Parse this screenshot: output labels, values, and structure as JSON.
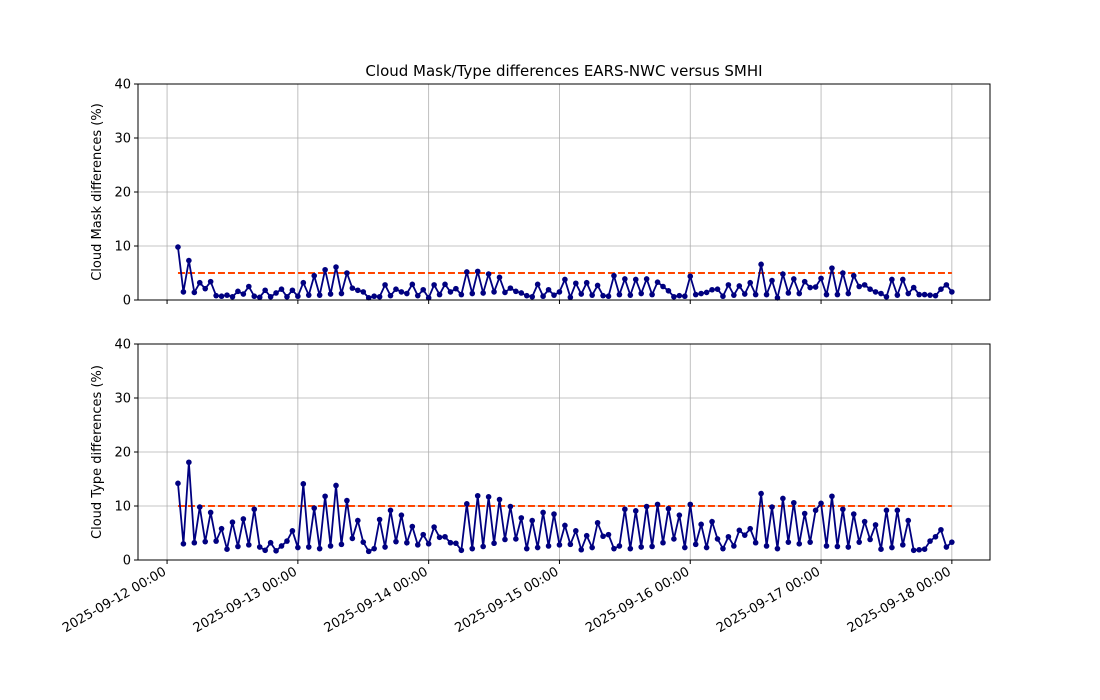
{
  "chart_data": [
    {
      "type": "line",
      "title": "Cloud Mask/Type differences EARS-NWC versus SMHI",
      "ylabel": "Cloud Mask differences (%)",
      "xlim": [
        "2025-09-11 18:40",
        "2025-09-18 07:00"
      ],
      "ylim": [
        0,
        40
      ],
      "yticks": [
        0,
        10,
        20,
        30,
        40
      ],
      "grid": true,
      "xticks": [
        "2025-09-12 00:00",
        "2025-09-13 00:00",
        "2025-09-14 00:00",
        "2025-09-15 00:00",
        "2025-09-16 00:00",
        "2025-09-17 00:00",
        "2025-09-18 00:00"
      ],
      "threshold": {
        "value": 5,
        "color": "#ff4500"
      },
      "x": [
        "2025-09-12 02:00",
        "2025-09-12 03:00",
        "2025-09-12 04:00",
        "2025-09-12 05:00",
        "2025-09-12 06:00",
        "2025-09-12 07:00",
        "2025-09-12 08:00",
        "2025-09-12 09:00",
        "2025-09-12 10:00",
        "2025-09-12 11:00",
        "2025-09-12 12:00",
        "2025-09-12 13:00",
        "2025-09-12 14:00",
        "2025-09-12 15:00",
        "2025-09-12 16:00",
        "2025-09-12 17:00",
        "2025-09-12 18:00",
        "2025-09-12 19:00",
        "2025-09-12 20:00",
        "2025-09-12 21:00",
        "2025-09-12 22:00",
        "2025-09-12 23:00",
        "2025-09-13 00:00",
        "2025-09-13 01:00",
        "2025-09-13 02:00",
        "2025-09-13 03:00",
        "2025-09-13 04:00",
        "2025-09-13 05:00",
        "2025-09-13 06:00",
        "2025-09-13 07:00",
        "2025-09-13 08:00",
        "2025-09-13 09:00",
        "2025-09-13 10:00",
        "2025-09-13 11:00",
        "2025-09-13 12:00",
        "2025-09-13 13:00",
        "2025-09-13 14:00",
        "2025-09-13 15:00",
        "2025-09-13 16:00",
        "2025-09-13 17:00",
        "2025-09-13 18:00",
        "2025-09-13 19:00",
        "2025-09-13 20:00",
        "2025-09-13 21:00",
        "2025-09-13 22:00",
        "2025-09-13 23:00",
        "2025-09-14 00:00",
        "2025-09-14 01:00",
        "2025-09-14 02:00",
        "2025-09-14 03:00",
        "2025-09-14 04:00",
        "2025-09-14 05:00",
        "2025-09-14 06:00",
        "2025-09-14 07:00",
        "2025-09-14 08:00",
        "2025-09-14 09:00",
        "2025-09-14 10:00",
        "2025-09-14 11:00",
        "2025-09-14 12:00",
        "2025-09-14 13:00",
        "2025-09-14 14:00",
        "2025-09-14 15:00",
        "2025-09-14 16:00",
        "2025-09-14 17:00",
        "2025-09-14 18:00",
        "2025-09-14 19:00",
        "2025-09-14 20:00",
        "2025-09-14 21:00",
        "2025-09-14 22:00",
        "2025-09-14 23:00",
        "2025-09-15 00:00",
        "2025-09-15 01:00",
        "2025-09-15 02:00",
        "2025-09-15 03:00",
        "2025-09-15 04:00",
        "2025-09-15 05:00",
        "2025-09-15 06:00",
        "2025-09-15 07:00",
        "2025-09-15 08:00",
        "2025-09-15 09:00",
        "2025-09-15 10:00",
        "2025-09-15 11:00",
        "2025-09-15 12:00",
        "2025-09-15 13:00",
        "2025-09-15 14:00",
        "2025-09-15 15:00",
        "2025-09-15 16:00",
        "2025-09-15 17:00",
        "2025-09-15 18:00",
        "2025-09-15 19:00",
        "2025-09-15 20:00",
        "2025-09-15 21:00",
        "2025-09-15 22:00",
        "2025-09-15 23:00",
        "2025-09-16 00:00",
        "2025-09-16 01:00",
        "2025-09-16 02:00",
        "2025-09-16 03:00",
        "2025-09-16 04:00",
        "2025-09-16 05:00",
        "2025-09-16 06:00",
        "2025-09-16 07:00",
        "2025-09-16 08:00",
        "2025-09-16 09:00",
        "2025-09-16 10:00",
        "2025-09-16 11:00",
        "2025-09-16 12:00",
        "2025-09-16 13:00",
        "2025-09-16 14:00",
        "2025-09-16 15:00",
        "2025-09-16 16:00",
        "2025-09-16 17:00",
        "2025-09-16 18:00",
        "2025-09-16 19:00",
        "2025-09-16 20:00",
        "2025-09-16 21:00",
        "2025-09-16 22:00",
        "2025-09-16 23:00",
        "2025-09-17 00:00",
        "2025-09-17 01:00",
        "2025-09-17 02:00",
        "2025-09-17 03:00",
        "2025-09-17 04:00",
        "2025-09-17 05:00",
        "2025-09-17 06:00",
        "2025-09-17 07:00",
        "2025-09-17 08:00",
        "2025-09-17 09:00",
        "2025-09-17 10:00",
        "2025-09-17 11:00",
        "2025-09-17 12:00",
        "2025-09-17 13:00",
        "2025-09-17 14:00",
        "2025-09-17 15:00",
        "2025-09-17 16:00",
        "2025-09-17 17:00",
        "2025-09-17 18:00",
        "2025-09-17 19:00",
        "2025-09-17 20:00",
        "2025-09-17 21:00",
        "2025-09-17 22:00",
        "2025-09-17 23:00",
        "2025-09-18 00:00"
      ],
      "series": [
        {
          "color": "#000080",
          "values": [
            9.8,
            1.5,
            7.3,
            1.4,
            3.2,
            2.1,
            3.4,
            0.8,
            0.7,
            0.9,
            0.6,
            1.6,
            1.1,
            2.5,
            0.7,
            0.5,
            1.8,
            0.6,
            1.3,
            2.0,
            0.6,
            1.8,
            0.7,
            3.2,
            0.9,
            4.5,
            0.9,
            5.6,
            1.1,
            6.1,
            1.2,
            5.0,
            2.2,
            1.8,
            1.5,
            0.4,
            0.7,
            0.6,
            2.8,
            0.8,
            2.0,
            1.5,
            1.2,
            2.9,
            0.8,
            1.9,
            0.4,
            2.8,
            1.0,
            2.9,
            1.5,
            2.1,
            1.0,
            5.2,
            1.2,
            5.3,
            1.3,
            4.8,
            1.5,
            4.2,
            1.4,
            2.2,
            1.6,
            1.3,
            0.8,
            0.6,
            2.9,
            0.7,
            1.9,
            0.9,
            1.5,
            3.8,
            0.5,
            3.1,
            1.1,
            3.2,
            0.9,
            2.7,
            0.8,
            0.7,
            4.5,
            1.0,
            3.9,
            0.9,
            3.8,
            1.2,
            3.9,
            1.0,
            3.3,
            2.5,
            1.7,
            0.6,
            0.8,
            0.7,
            4.4,
            1.0,
            1.2,
            1.4,
            1.9,
            2.0,
            0.7,
            2.8,
            0.9,
            2.6,
            1.1,
            3.2,
            1.0,
            6.6,
            1.0,
            3.6,
            0.4,
            4.8,
            1.3,
            3.9,
            1.2,
            3.4,
            2.3,
            2.4,
            4.0,
            1.0,
            5.9,
            1.0,
            5.0,
            1.2,
            4.5,
            2.5,
            2.8,
            2.0,
            1.5,
            1.2,
            0.6,
            3.8,
            0.9,
            3.8,
            1.2,
            2.3,
            1.0,
            1.0,
            0.9,
            0.8,
            2.0,
            2.8,
            1.5
          ]
        }
      ]
    },
    {
      "type": "line",
      "ylabel": "Cloud Type differences (%)",
      "xlim": [
        "2025-09-11 18:40",
        "2025-09-18 07:00"
      ],
      "ylim": [
        0,
        40
      ],
      "yticks": [
        0,
        10,
        20,
        30,
        40
      ],
      "grid": true,
      "xticks": [
        "2025-09-12 00:00",
        "2025-09-13 00:00",
        "2025-09-14 00:00",
        "2025-09-15 00:00",
        "2025-09-16 00:00",
        "2025-09-17 00:00",
        "2025-09-18 00:00"
      ],
      "threshold": {
        "value": 10,
        "color": "#ff4500"
      },
      "x": [
        "2025-09-12 02:00",
        "2025-09-12 03:00",
        "2025-09-12 04:00",
        "2025-09-12 05:00",
        "2025-09-12 06:00",
        "2025-09-12 07:00",
        "2025-09-12 08:00",
        "2025-09-12 09:00",
        "2025-09-12 10:00",
        "2025-09-12 11:00",
        "2025-09-12 12:00",
        "2025-09-12 13:00",
        "2025-09-12 14:00",
        "2025-09-12 15:00",
        "2025-09-12 16:00",
        "2025-09-12 17:00",
        "2025-09-12 18:00",
        "2025-09-12 19:00",
        "2025-09-12 20:00",
        "2025-09-12 21:00",
        "2025-09-12 22:00",
        "2025-09-12 23:00",
        "2025-09-13 00:00",
        "2025-09-13 01:00",
        "2025-09-13 02:00",
        "2025-09-13 03:00",
        "2025-09-13 04:00",
        "2025-09-13 05:00",
        "2025-09-13 06:00",
        "2025-09-13 07:00",
        "2025-09-13 08:00",
        "2025-09-13 09:00",
        "2025-09-13 10:00",
        "2025-09-13 11:00",
        "2025-09-13 12:00",
        "2025-09-13 13:00",
        "2025-09-13 14:00",
        "2025-09-13 15:00",
        "2025-09-13 16:00",
        "2025-09-13 17:00",
        "2025-09-13 18:00",
        "2025-09-13 19:00",
        "2025-09-13 20:00",
        "2025-09-13 21:00",
        "2025-09-13 22:00",
        "2025-09-13 23:00",
        "2025-09-14 00:00",
        "2025-09-14 01:00",
        "2025-09-14 02:00",
        "2025-09-14 03:00",
        "2025-09-14 04:00",
        "2025-09-14 05:00",
        "2025-09-14 06:00",
        "2025-09-14 07:00",
        "2025-09-14 08:00",
        "2025-09-14 09:00",
        "2025-09-14 10:00",
        "2025-09-14 11:00",
        "2025-09-14 12:00",
        "2025-09-14 13:00",
        "2025-09-14 14:00",
        "2025-09-14 15:00",
        "2025-09-14 16:00",
        "2025-09-14 17:00",
        "2025-09-14 18:00",
        "2025-09-14 19:00",
        "2025-09-14 20:00",
        "2025-09-14 21:00",
        "2025-09-14 22:00",
        "2025-09-14 23:00",
        "2025-09-15 00:00",
        "2025-09-15 01:00",
        "2025-09-15 02:00",
        "2025-09-15 03:00",
        "2025-09-15 04:00",
        "2025-09-15 05:00",
        "2025-09-15 06:00",
        "2025-09-15 07:00",
        "2025-09-15 08:00",
        "2025-09-15 09:00",
        "2025-09-15 10:00",
        "2025-09-15 11:00",
        "2025-09-15 12:00",
        "2025-09-15 13:00",
        "2025-09-15 14:00",
        "2025-09-15 15:00",
        "2025-09-15 16:00",
        "2025-09-15 17:00",
        "2025-09-15 18:00",
        "2025-09-15 19:00",
        "2025-09-15 20:00",
        "2025-09-15 21:00",
        "2025-09-15 22:00",
        "2025-09-15 23:00",
        "2025-09-16 00:00",
        "2025-09-16 01:00",
        "2025-09-16 02:00",
        "2025-09-16 03:00",
        "2025-09-16 04:00",
        "2025-09-16 05:00",
        "2025-09-16 06:00",
        "2025-09-16 07:00",
        "2025-09-16 08:00",
        "2025-09-16 09:00",
        "2025-09-16 10:00",
        "2025-09-16 11:00",
        "2025-09-16 12:00",
        "2025-09-16 13:00",
        "2025-09-16 14:00",
        "2025-09-16 15:00",
        "2025-09-16 16:00",
        "2025-09-16 17:00",
        "2025-09-16 18:00",
        "2025-09-16 19:00",
        "2025-09-16 20:00",
        "2025-09-16 21:00",
        "2025-09-16 22:00",
        "2025-09-16 23:00",
        "2025-09-17 00:00",
        "2025-09-17 01:00",
        "2025-09-17 02:00",
        "2025-09-17 03:00",
        "2025-09-17 04:00",
        "2025-09-17 05:00",
        "2025-09-17 06:00",
        "2025-09-17 07:00",
        "2025-09-17 08:00",
        "2025-09-17 09:00",
        "2025-09-17 10:00",
        "2025-09-17 11:00",
        "2025-09-17 12:00",
        "2025-09-17 13:00",
        "2025-09-17 14:00",
        "2025-09-17 15:00",
        "2025-09-17 16:00",
        "2025-09-17 17:00",
        "2025-09-17 18:00",
        "2025-09-17 19:00",
        "2025-09-17 20:00",
        "2025-09-17 21:00",
        "2025-09-17 22:00",
        "2025-09-17 23:00",
        "2025-09-18 00:00"
      ],
      "series": [
        {
          "color": "#000080",
          "values": [
            14.2,
            3.0,
            18.1,
            3.2,
            9.8,
            3.4,
            8.8,
            3.5,
            5.8,
            2.0,
            7.0,
            2.5,
            7.6,
            2.8,
            9.4,
            2.4,
            1.8,
            3.2,
            1.7,
            2.6,
            3.5,
            5.4,
            2.3,
            14.1,
            2.4,
            9.6,
            2.1,
            11.8,
            2.6,
            13.8,
            2.9,
            11.0,
            4.0,
            7.3,
            3.3,
            1.6,
            2.1,
            7.5,
            2.4,
            9.2,
            3.4,
            8.3,
            3.2,
            6.2,
            2.8,
            4.7,
            3.0,
            6.1,
            4.2,
            4.3,
            3.2,
            3.1,
            1.8,
            10.4,
            2.1,
            11.9,
            2.5,
            11.7,
            3.1,
            11.2,
            3.8,
            9.9,
            3.9,
            7.8,
            2.1,
            7.3,
            2.3,
            8.8,
            2.6,
            8.5,
            2.8,
            6.4,
            2.9,
            5.4,
            1.9,
            4.5,
            2.3,
            6.9,
            4.4,
            4.7,
            2.1,
            2.6,
            9.4,
            2.1,
            9.1,
            2.4,
            9.9,
            2.5,
            10.3,
            3.2,
            9.5,
            3.9,
            8.3,
            2.3,
            10.3,
            2.9,
            6.6,
            2.3,
            7.1,
            3.9,
            2.1,
            4.3,
            2.6,
            5.5,
            4.6,
            5.8,
            3.2,
            12.3,
            2.6,
            9.8,
            2.1,
            11.4,
            3.3,
            10.6,
            3.0,
            8.6,
            3.3,
            9.2,
            10.5,
            2.6,
            11.8,
            2.5,
            9.4,
            2.4,
            8.5,
            3.3,
            7.1,
            3.8,
            6.5,
            2.0,
            9.2,
            2.3,
            9.2,
            2.8,
            7.3,
            1.8,
            1.9,
            2.0,
            3.5,
            4.3,
            5.6,
            2.4,
            3.3
          ]
        }
      ]
    }
  ]
}
